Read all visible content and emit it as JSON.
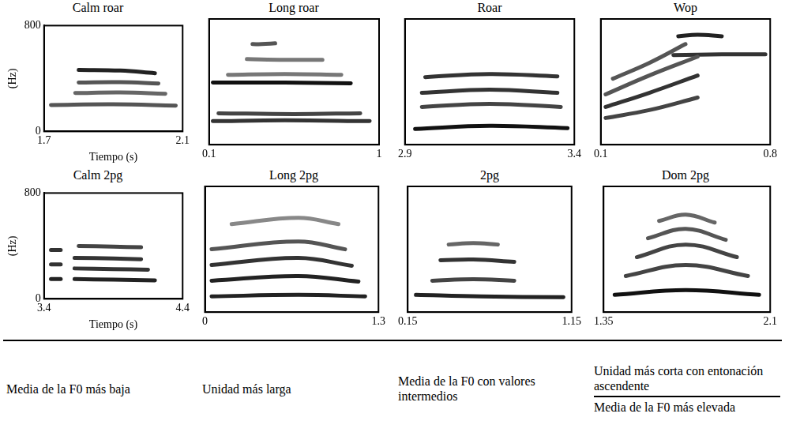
{
  "chart_data": [
    {
      "type": "line",
      "title": "Calm roar",
      "x_label": "Tiempo (s)",
      "y_label": "(Hz)",
      "grid": false,
      "xlim": [
        1.7,
        2.1
      ],
      "xticks": [
        1.7,
        2.1
      ],
      "ylim": [
        0,
        800
      ],
      "yticks": [
        0,
        800
      ],
      "series": [
        {
          "color": "#555555",
          "x": [
            1.72,
            1.9,
            2.08
          ],
          "values": [
            200,
            205,
            195
          ]
        },
        {
          "color": "#666666",
          "x": [
            1.79,
            1.92,
            2.05
          ],
          "values": [
            290,
            295,
            285
          ]
        },
        {
          "color": "#555555",
          "x": [
            1.8,
            1.92,
            2.03
          ],
          "values": [
            370,
            372,
            362
          ]
        },
        {
          "color": "#222222",
          "x": [
            1.8,
            1.92,
            2.02
          ],
          "values": [
            465,
            460,
            440
          ]
        }
      ]
    },
    {
      "type": "line",
      "title": "Long roar",
      "tick_labels": "x",
      "grid": false,
      "xlim": [
        0.1,
        1
      ],
      "xticks": [
        0.1,
        1
      ],
      "ylim": [
        0,
        800
      ],
      "series": [
        {
          "color": "#333333",
          "x": [
            0.12,
            0.5,
            0.95
          ],
          "values": [
            150,
            155,
            150
          ]
        },
        {
          "color": "#444444",
          "x": [
            0.15,
            0.55,
            0.9
          ],
          "values": [
            200,
            195,
            200
          ]
        },
        {
          "color": "#111111",
          "x": [
            0.12,
            0.5,
            0.85
          ],
          "values": [
            395,
            395,
            390
          ]
        },
        {
          "color": "#777777",
          "x": [
            0.2,
            0.5,
            0.8
          ],
          "values": [
            445,
            450,
            445
          ]
        },
        {
          "color": "#777777",
          "x": [
            0.3,
            0.5,
            0.7
          ],
          "values": [
            545,
            540,
            540
          ]
        },
        {
          "color": "#555555",
          "x": [
            0.33,
            0.38,
            0.45
          ],
          "values": [
            640,
            640,
            645
          ]
        }
      ]
    },
    {
      "type": "line",
      "title": "Roar",
      "tick_labels": "x",
      "grid": false,
      "xlim": [
        2.9,
        3.4
      ],
      "xticks": [
        2.9,
        3.4
      ],
      "ylim": [
        0,
        800
      ],
      "series": [
        {
          "color": "#111111",
          "x": [
            2.93,
            3.15,
            3.38
          ],
          "values": [
            100,
            120,
            105
          ]
        },
        {
          "color": "#444444",
          "x": [
            2.95,
            3.15,
            3.36
          ],
          "values": [
            240,
            260,
            240
          ]
        },
        {
          "color": "#333333",
          "x": [
            2.95,
            3.15,
            3.35
          ],
          "values": [
            330,
            350,
            330
          ]
        },
        {
          "color": "#333333",
          "x": [
            2.96,
            3.15,
            3.35
          ],
          "values": [
            430,
            450,
            435
          ]
        }
      ]
    },
    {
      "type": "line",
      "title": "Wop",
      "tick_labels": "x",
      "grid": false,
      "xlim": [
        0.1,
        0.8
      ],
      "xticks": [
        0.1,
        0.8
      ],
      "ylim": [
        0,
        800
      ],
      "series": [
        {
          "color": "#444444",
          "x": [
            0.12,
            0.3,
            0.5
          ],
          "values": [
            170,
            220,
            300
          ]
        },
        {
          "color": "#333333",
          "x": [
            0.12,
            0.3,
            0.5
          ],
          "values": [
            240,
            330,
            440
          ]
        },
        {
          "color": "#555555",
          "x": [
            0.12,
            0.3,
            0.5
          ],
          "values": [
            320,
            440,
            560
          ]
        },
        {
          "color": "#555555",
          "x": [
            0.15,
            0.3,
            0.45
          ],
          "values": [
            420,
            520,
            640
          ]
        },
        {
          "color": "#333333",
          "x": [
            0.4,
            0.6,
            0.78
          ],
          "values": [
            570,
            575,
            575
          ]
        },
        {
          "color": "#222222",
          "x": [
            0.42,
            0.5,
            0.6
          ],
          "values": [
            690,
            700,
            690
          ]
        }
      ]
    },
    {
      "type": "line",
      "title": "Calm 2pg",
      "x_label": "Tiempo (s)",
      "y_label": "(Hz)",
      "grid": false,
      "xlim": [
        3.4,
        4.4
      ],
      "xticks": [
        3.4,
        4.4
      ],
      "ylim": [
        0,
        800
      ],
      "yticks": [
        0,
        800
      ],
      "series": [
        {
          "color": "#222222",
          "x": [
            3.45,
            3.52
          ],
          "values": [
            150,
            150
          ]
        },
        {
          "color": "#333333",
          "x": [
            3.45,
            3.52
          ],
          "values": [
            260,
            260
          ]
        },
        {
          "color": "#333333",
          "x": [
            3.45,
            3.52
          ],
          "values": [
            370,
            370
          ]
        },
        {
          "color": "#222222",
          "x": [
            3.62,
            3.9,
            4.2
          ],
          "values": [
            150,
            145,
            140
          ]
        },
        {
          "color": "#333333",
          "x": [
            3.62,
            3.9,
            4.15
          ],
          "values": [
            230,
            225,
            220
          ]
        },
        {
          "color": "#333333",
          "x": [
            3.62,
            3.9,
            4.1
          ],
          "values": [
            310,
            305,
            300
          ]
        },
        {
          "color": "#444444",
          "x": [
            3.65,
            3.9,
            4.1
          ],
          "values": [
            400,
            395,
            390
          ]
        }
      ]
    },
    {
      "type": "line",
      "title": "Long 2pg",
      "tick_labels": "x",
      "grid": false,
      "xlim": [
        0,
        1.3
      ],
      "xticks": [
        0,
        1.3
      ],
      "ylim": [
        0,
        800
      ],
      "series": [
        {
          "color": "#222222",
          "x": [
            0.05,
            0.7,
            1.2
          ],
          "values": [
            100,
            110,
            100
          ]
        },
        {
          "color": "#222222",
          "x": [
            0.05,
            0.7,
            1.15
          ],
          "values": [
            200,
            230,
            195
          ]
        },
        {
          "color": "#333333",
          "x": [
            0.05,
            0.7,
            1.1
          ],
          "values": [
            300,
            345,
            295
          ]
        },
        {
          "color": "#555555",
          "x": [
            0.05,
            0.7,
            1.05
          ],
          "values": [
            400,
            450,
            400
          ]
        },
        {
          "color": "#888888",
          "x": [
            0.2,
            0.7,
            1.0
          ],
          "values": [
            560,
            600,
            560
          ]
        }
      ]
    },
    {
      "type": "line",
      "title": "2pg",
      "tick_labels": "x",
      "grid": false,
      "xlim": [
        0.15,
        1.15
      ],
      "xticks": [
        0.15,
        1.15
      ],
      "ylim": [
        0,
        800
      ],
      "series": [
        {
          "color": "#222222",
          "x": [
            0.2,
            0.6,
            1.1
          ],
          "values": [
            110,
            100,
            95
          ]
        },
        {
          "color": "#444444",
          "x": [
            0.3,
            0.55,
            0.8
          ],
          "values": [
            200,
            210,
            200
          ]
        },
        {
          "color": "#333333",
          "x": [
            0.35,
            0.55,
            0.8
          ],
          "values": [
            330,
            335,
            320
          ]
        },
        {
          "color": "#666666",
          "x": [
            0.4,
            0.55,
            0.7
          ],
          "values": [
            430,
            440,
            430
          ]
        }
      ]
    },
    {
      "type": "line",
      "title": "Dom 2pg",
      "tick_labels": "x",
      "grid": false,
      "xlim": [
        1.35,
        2.1
      ],
      "xticks": [
        1.35,
        2.1
      ],
      "ylim": [
        0,
        800
      ],
      "series": [
        {
          "color": "#111111",
          "x": [
            1.4,
            1.72,
            2.05
          ],
          "values": [
            110,
            140,
            110
          ]
        },
        {
          "color": "#444444",
          "x": [
            1.45,
            1.72,
            2.0
          ],
          "values": [
            230,
            300,
            230
          ]
        },
        {
          "color": "#444444",
          "x": [
            1.5,
            1.72,
            1.95
          ],
          "values": [
            350,
            430,
            350
          ]
        },
        {
          "color": "#555555",
          "x": [
            1.55,
            1.72,
            1.9
          ],
          "values": [
            470,
            530,
            460
          ]
        },
        {
          "color": "#666666",
          "x": [
            1.6,
            1.72,
            1.85
          ],
          "values": [
            580,
            620,
            570
          ]
        }
      ]
    }
  ],
  "captions": [
    [
      "Media de la F0 más baja"
    ],
    [
      "Unidad más larga"
    ],
    [
      "Media de la F0 con valores intermedios"
    ],
    [
      "Unidad más corta con entonación ascendente",
      "Media de la F0 más elevada"
    ]
  ]
}
